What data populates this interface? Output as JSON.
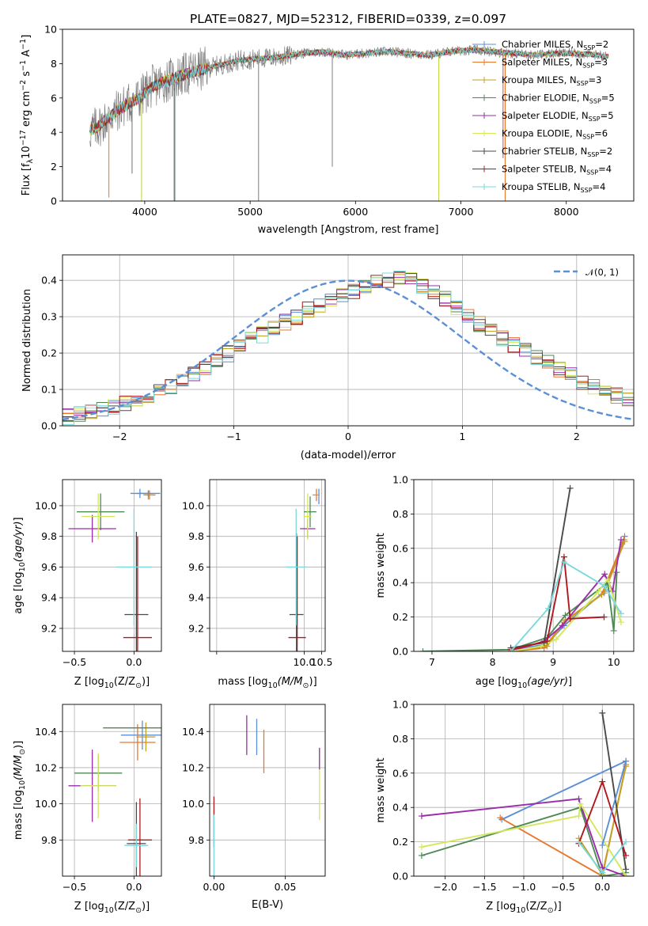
{
  "figure": {
    "title": "PLATE=0827, MJD=52312, FIBERID=0339, z=0.097"
  },
  "series": [
    {
      "name": "Chabrier MILES, N",
      "sub": "SSP",
      "eq": "=2",
      "color": "#5b8fd6"
    },
    {
      "name": "Salpeter MILES, N",
      "sub": "SSP",
      "eq": "=3",
      "color": "#e8772e"
    },
    {
      "name": "Kroupa MILES, N",
      "sub": "SSP",
      "eq": "=3",
      "color": "#c2a026"
    },
    {
      "name": "Chabrier ELODIE, N",
      "sub": "SSP",
      "eq": "=5",
      "color": "#4f8a55"
    },
    {
      "name": "Salpeter ELODIE, N",
      "sub": "SSP",
      "eq": "=5",
      "color": "#9a2ea8"
    },
    {
      "name": "Kroupa ELODIE, N",
      "sub": "SSP",
      "eq": "=6",
      "color": "#d3e85a"
    },
    {
      "name": "Chabrier STELIB, N",
      "sub": "SSP",
      "eq": "=2",
      "color": "#4a4a4a"
    },
    {
      "name": "Salpeter STELIB, N",
      "sub": "SSP",
      "eq": "=4",
      "color": "#b0181e"
    },
    {
      "name": "Kroupa STELIB, N",
      "sub": "SSP",
      "eq": "=4",
      "color": "#7ad9dc"
    }
  ],
  "chart_data": [
    {
      "type": "line",
      "id": "spectrum",
      "title": "PLATE=0827, MJD=52312, FIBERID=0339, z=0.097",
      "xlabel": "wavelength [Angstrom, rest frame]",
      "ylabel_main": "Flux [f",
      "ylabel_sub": "λ",
      "ylabel_rest": "10",
      "ylabel_exp1": "−17",
      "ylabel_mid": " erg cm",
      "ylabel_exp2": "−2",
      "ylabel_mid2": " s",
      "ylabel_exp3": "−1",
      "ylabel_end": " A",
      "ylabel_exp4": "−1",
      "ylabel_close": "]",
      "xlim": [
        3220,
        8640
      ],
      "ylim": [
        0,
        10
      ],
      "xticks": [
        4000,
        5000,
        6000,
        7000,
        8000
      ],
      "yticks": [
        0,
        2,
        4,
        6,
        8,
        10
      ],
      "continuum": {
        "x": [
          3480,
          3550,
          3650,
          3750,
          3850,
          3950,
          4050,
          4200,
          4350,
          4500,
          4700,
          4900,
          5100,
          5300,
          5500,
          5700,
          5900,
          6100,
          6300,
          6500,
          6700,
          6900,
          7100,
          7300,
          7500,
          7700,
          7900,
          8100,
          8300,
          8400
        ],
        "y": [
          4.1,
          4.3,
          4.8,
          5.3,
          5.7,
          6.0,
          6.6,
          7.0,
          7.3,
          7.6,
          7.9,
          8.2,
          8.3,
          8.4,
          8.6,
          8.7,
          8.5,
          8.6,
          8.7,
          8.6,
          8.5,
          8.7,
          8.8,
          8.7,
          8.6,
          8.5,
          8.6,
          8.6,
          8.5,
          8.4
        ]
      },
      "legend_position": "right"
    },
    {
      "type": "histogram",
      "id": "residuals",
      "xlabel": "(data-model)/error",
      "ylabel": "Normed distribution",
      "xlim": [
        -2.5,
        2.5
      ],
      "ylim": [
        0,
        0.47
      ],
      "xticks": [
        -2,
        -1,
        0,
        1,
        2
      ],
      "yticks": [
        0.0,
        0.1,
        0.2,
        0.3,
        0.4
      ],
      "reference_curve": {
        "name": "𝒩(0, 1)",
        "color": "#5b8fd6"
      },
      "bin_width": 0.1,
      "bin_start": -2.5,
      "base_values": [
        0.025,
        0.032,
        0.036,
        0.042,
        0.05,
        0.06,
        0.072,
        0.082,
        0.092,
        0.108,
        0.125,
        0.145,
        0.162,
        0.18,
        0.198,
        0.215,
        0.235,
        0.25,
        0.27,
        0.285,
        0.3,
        0.318,
        0.33,
        0.345,
        0.355,
        0.372,
        0.385,
        0.395,
        0.4,
        0.403,
        0.4,
        0.385,
        0.37,
        0.348,
        0.325,
        0.3,
        0.28,
        0.26,
        0.24,
        0.222,
        0.205,
        0.19,
        0.172,
        0.155,
        0.138,
        0.122,
        0.108,
        0.095,
        0.083,
        0.072
      ],
      "legend_position": "top-right"
    },
    {
      "type": "scatter",
      "id": "age_vs_Z",
      "xlabel": "Z [log",
      "ylabel": "age  [log",
      "xlim": [
        -0.6,
        0.23
      ],
      "ylim": [
        9.05,
        10.17
      ],
      "xticks": [
        -0.5,
        0.0
      ],
      "yticks": [
        9.2,
        9.4,
        9.6,
        9.8,
        10.0
      ],
      "points": [
        {
          "s": 0,
          "x": 0.05,
          "y": 10.08,
          "xe": 0.08,
          "ye": 0.03
        },
        {
          "s": 1,
          "x": 0.13,
          "y": 10.07,
          "xe": 0.05,
          "ye": 0.03
        },
        {
          "s": 2,
          "x": 0.12,
          "y": 10.07,
          "xe": 0.04,
          "ye": 0.03
        },
        {
          "s": 3,
          "x": -0.28,
          "y": 9.96,
          "xe": 0.2,
          "ye": 0.12
        },
        {
          "s": 4,
          "x": -0.35,
          "y": 9.85,
          "xe": 0.2,
          "ye": 0.09
        },
        {
          "s": 5,
          "x": -0.3,
          "y": 9.93,
          "xe": 0.14,
          "ye": 0.15
        },
        {
          "s": 6,
          "x": 0.02,
          "y": 9.29,
          "xe": 0.1,
          "ye": 0.54
        },
        {
          "s": 7,
          "x": 0.03,
          "y": 9.14,
          "xe": 0.12,
          "ye": 0.66
        },
        {
          "s": 8,
          "x": 0.0,
          "y": 9.6,
          "xe": 0.15,
          "ye": 0.38
        },
        {
          "s": 0,
          "x": 0.12,
          "y": 10.08,
          "xe": 0.1,
          "ye": 0.02
        },
        {
          "s": 6,
          "x": 0.12,
          "y": 10.08,
          "xe": 0.0,
          "ye": 0.0
        }
      ]
    },
    {
      "type": "scatter",
      "id": "age_vs_mass",
      "xlabel": "mass [log",
      "xlim": [
        7.3,
        10.6
      ],
      "ylim": [
        9.05,
        10.17
      ],
      "xticks": [
        7.5,
        10.0,
        10.5
      ],
      "xtick_labels": [
        "",
        "10.0",
        "10.5"
      ],
      "yticks": [
        9.2,
        9.4,
        9.6,
        9.8,
        10.0
      ],
      "points": [
        {
          "s": 0,
          "x": 10.42,
          "y": 10.06,
          "xe": 0.0,
          "ye": 0.05
        },
        {
          "s": 1,
          "x": 10.35,
          "y": 10.07,
          "xe": 0.0,
          "ye": 0.04
        },
        {
          "s": 2,
          "x": 10.34,
          "y": 10.07,
          "xe": 0.1,
          "ye": 0.0
        },
        {
          "s": 3,
          "x": 10.17,
          "y": 9.96,
          "xe": 0.18,
          "ye": 0.1
        },
        {
          "s": 4,
          "x": 10.1,
          "y": 9.85,
          "xe": 0.22,
          "ye": 0.06
        },
        {
          "s": 5,
          "x": 10.1,
          "y": 9.93,
          "xe": 0.12,
          "ye": 0.15
        },
        {
          "s": 6,
          "x": 9.78,
          "y": 9.29,
          "xe": 0.2,
          "ye": 0.53
        },
        {
          "s": 7,
          "x": 9.8,
          "y": 9.14,
          "xe": 0.25,
          "ye": 0.66
        },
        {
          "s": 8,
          "x": 9.77,
          "y": 9.6,
          "xe": 0.3,
          "ye": 0.38
        }
      ]
    },
    {
      "type": "line",
      "id": "weight_vs_age",
      "xlabel": "age  [log",
      "ylabel": "mass weight",
      "xlim": [
        6.7,
        10.33
      ],
      "ylim": [
        0,
        1.0
      ],
      "xticks": [
        7,
        8,
        9,
        10
      ],
      "yticks": [
        0.0,
        0.2,
        0.4,
        0.6,
        0.8,
        1.0
      ],
      "lines": [
        {
          "s": 0,
          "x": [
            8.3,
            8.88,
            9.18,
            9.85,
            10.18
          ],
          "y": [
            0.01,
            0.04,
            0.15,
            0.35,
            0.67
          ]
        },
        {
          "s": 1,
          "x": [
            8.3,
            8.85,
            9.2,
            9.8,
            10.17
          ],
          "y": [
            0.0,
            0.02,
            0.18,
            0.33,
            0.65
          ]
        },
        {
          "s": 2,
          "x": [
            8.3,
            8.9,
            9.18,
            9.84,
            10.18
          ],
          "y": [
            0.0,
            0.03,
            0.17,
            0.34,
            0.64
          ]
        },
        {
          "s": 3,
          "x": [
            6.85,
            8.3,
            8.9,
            9.2,
            9.9,
            10.0,
            10.05
          ],
          "y": [
            0.0,
            0.01,
            0.08,
            0.21,
            0.4,
            0.12,
            0.46
          ]
        },
        {
          "s": 4,
          "x": [
            8.3,
            8.85,
            9.15,
            9.85,
            9.98,
            10.12
          ],
          "y": [
            0.0,
            0.06,
            0.15,
            0.45,
            0.35,
            0.65
          ]
        },
        {
          "s": 5,
          "x": [
            8.3,
            8.8,
            9.05,
            9.75,
            9.9,
            10.12
          ],
          "y": [
            0.0,
            0.03,
            0.07,
            0.35,
            0.42,
            0.17
          ]
        },
        {
          "s": 6,
          "x": [
            8.3,
            8.85,
            9.28
          ],
          "y": [
            0.02,
            0.05,
            0.95
          ]
        },
        {
          "s": 7,
          "x": [
            8.3,
            8.9,
            9.18,
            9.28,
            9.84
          ],
          "y": [
            0.01,
            0.06,
            0.55,
            0.19,
            0.2
          ]
        },
        {
          "s": 8,
          "x": [
            8.3,
            8.92,
            9.18,
            9.85,
            10.12
          ],
          "y": [
            0.0,
            0.25,
            0.52,
            0.38,
            0.22
          ]
        }
      ]
    },
    {
      "type": "scatter",
      "id": "mass_vs_Z",
      "xlabel": "Z [log",
      "ylabel": "mass [log",
      "xlim": [
        -0.6,
        0.23
      ],
      "ylim": [
        9.6,
        10.55
      ],
      "xticks": [
        -0.5,
        0.0
      ],
      "yticks": [
        9.8,
        10.0,
        10.2,
        10.4
      ],
      "points": [
        {
          "s": 0,
          "x": 0.07,
          "y": 10.38,
          "xe": 0.18,
          "ye": 0.08
        },
        {
          "s": 1,
          "x": 0.03,
          "y": 10.34,
          "xe": 0.15,
          "ye": 0.1
        },
        {
          "s": 2,
          "x": 0.1,
          "y": 10.37,
          "xe": 0.08,
          "ye": 0.08
        },
        {
          "s": 3,
          "x": -0.3,
          "y": 10.17,
          "xe": 0.2,
          "ye": 0.1
        },
        {
          "s": 4,
          "x": -0.35,
          "y": 10.1,
          "xe": 0.2,
          "ye": 0.2
        },
        {
          "s": 5,
          "x": -0.3,
          "y": 10.1,
          "xe": 0.15,
          "ye": 0.18
        },
        {
          "s": 6,
          "x": 0.02,
          "y": 9.78,
          "xe": 0.08,
          "ye": 0.23
        },
        {
          "s": 7,
          "x": 0.05,
          "y": 9.8,
          "xe": 0.1,
          "ye": 0.23
        },
        {
          "s": 8,
          "x": 0.02,
          "y": 9.77,
          "xe": 0.1,
          "ye": 0.12
        },
        {
          "s": 3,
          "x": 0.08,
          "y": 10.42,
          "xe": 0.34,
          "ye": 0.0
        }
      ]
    },
    {
      "type": "scatter",
      "id": "mass_vs_ebv",
      "xlabel": "E(B-V)",
      "xlim": [
        -0.003,
        0.078
      ],
      "ylim": [
        9.6,
        10.55
      ],
      "xticks": [
        0.0,
        0.05
      ],
      "xtick_labels": [
        "0.00",
        "0.05"
      ],
      "yticks": [
        9.8,
        10.0,
        10.2,
        10.4
      ],
      "points": [
        {
          "s": 0,
          "x": 0.03,
          "y": 10.37,
          "xe": 0.0,
          "ye": 0.1
        },
        {
          "s": 1,
          "x": 0.035,
          "y": 10.29,
          "xe": 0.0,
          "ye": 0.12
        },
        {
          "s": 4,
          "x": 0.023,
          "y": 10.38,
          "xe": 0.0,
          "ye": 0.11
        },
        {
          "s": 5,
          "x": 0.074,
          "y": 10.11,
          "xe": 0.0,
          "ye": 0.2
        },
        {
          "s": 4,
          "x": 0.074,
          "y": 10.25,
          "xe": 0.0,
          "ye": 0.06
        },
        {
          "s": 7,
          "x": 0.0,
          "y": 9.9,
          "xe": 0.0,
          "ye": 0.14
        },
        {
          "s": 8,
          "x": 0.0,
          "y": 9.77,
          "xe": 0.0,
          "ye": 0.17
        }
      ]
    },
    {
      "type": "line",
      "id": "weight_vs_Z",
      "xlabel": "Z [log",
      "ylabel": "mass weight",
      "xlim": [
        -2.4,
        0.4
      ],
      "ylim": [
        0,
        1.0
      ],
      "xticks": [
        -2.0,
        -1.5,
        -1.0,
        -0.5,
        0.0
      ],
      "yticks": [
        0.0,
        0.2,
        0.4,
        0.6,
        0.8,
        1.0
      ],
      "lines": [
        {
          "s": 0,
          "x": [
            -1.28,
            0.3
          ],
          "y": [
            0.33,
            0.67
          ]
        },
        {
          "s": 1,
          "x": [
            -1.3,
            0.0,
            0.3
          ],
          "y": [
            0.34,
            0.0,
            0.65
          ]
        },
        {
          "s": 2,
          "x": [
            -0.3,
            0.0,
            0.3
          ],
          "y": [
            0.22,
            0.01,
            0.64
          ]
        },
        {
          "s": 3,
          "x": [
            -2.3,
            -0.28,
            0.0,
            0.3
          ],
          "y": [
            0.12,
            0.4,
            0.0,
            0.02
          ]
        },
        {
          "s": 4,
          "x": [
            -2.3,
            -0.3,
            0.0,
            0.3
          ],
          "y": [
            0.35,
            0.45,
            0.05,
            0.0
          ]
        },
        {
          "s": 5,
          "x": [
            -2.3,
            -0.3,
            -0.28,
            0.3
          ],
          "y": [
            0.17,
            0.35,
            0.42,
            0.0
          ]
        },
        {
          "s": 6,
          "x": [
            -0.0,
            0.3
          ],
          "y": [
            0.95,
            0.04
          ]
        },
        {
          "s": 7,
          "x": [
            -0.3,
            0.0,
            0.3
          ],
          "y": [
            0.19,
            0.55,
            0.12
          ]
        },
        {
          "s": 8,
          "x": [
            -0.3,
            0.0,
            0.3
          ],
          "y": [
            0.2,
            0.02,
            0.2
          ]
        },
        {
          "s": 0,
          "x": [
            0.0,
            0.3
          ],
          "y": [
            0.18,
            0.67
          ]
        }
      ]
    }
  ]
}
